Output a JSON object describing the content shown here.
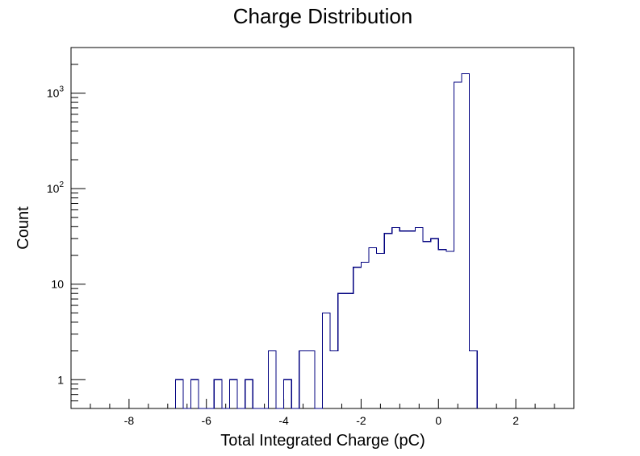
{
  "chart_data": {
    "type": "bar",
    "title": "Charge Distribution",
    "xlabel": "Total Integrated Charge (pC)",
    "ylabel": "Count",
    "xlim": [
      -9.5,
      3.5
    ],
    "ylim": [
      0.5,
      3000
    ],
    "yscale": "log",
    "grid": false,
    "legend": "none",
    "bin_width": 0.2,
    "series_color": "#00007f",
    "x_ticks": [
      "-8",
      "-6",
      "-4",
      "-2",
      "0",
      "2"
    ],
    "y_ticks": [
      {
        "value": 1,
        "base": "1",
        "sup": ""
      },
      {
        "value": 10,
        "base": "10",
        "sup": ""
      },
      {
        "value": 100,
        "base": "10",
        "sup": "2"
      },
      {
        "value": 1000,
        "base": "10",
        "sup": "3"
      }
    ],
    "bins": [
      {
        "x": -6.7,
        "count": 1
      },
      {
        "x": -6.5,
        "count": 0
      },
      {
        "x": -6.3,
        "count": 1
      },
      {
        "x": -6.1,
        "count": 0
      },
      {
        "x": -5.9,
        "count": 0
      },
      {
        "x": -5.7,
        "count": 1
      },
      {
        "x": -5.5,
        "count": 0
      },
      {
        "x": -5.3,
        "count": 1
      },
      {
        "x": -5.1,
        "count": 0
      },
      {
        "x": -4.9,
        "count": 1
      },
      {
        "x": -4.7,
        "count": 0
      },
      {
        "x": -4.5,
        "count": 0
      },
      {
        "x": -4.3,
        "count": 2
      },
      {
        "x": -4.1,
        "count": 0
      },
      {
        "x": -3.9,
        "count": 1
      },
      {
        "x": -3.7,
        "count": 0
      },
      {
        "x": -3.5,
        "count": 2
      },
      {
        "x": -3.3,
        "count": 2
      },
      {
        "x": -3.1,
        "count": 0
      },
      {
        "x": -2.9,
        "count": 5
      },
      {
        "x": -2.7,
        "count": 2
      },
      {
        "x": -2.5,
        "count": 8
      },
      {
        "x": -2.3,
        "count": 8
      },
      {
        "x": -2.1,
        "count": 15
      },
      {
        "x": -1.9,
        "count": 17
      },
      {
        "x": -1.7,
        "count": 24
      },
      {
        "x": -1.5,
        "count": 21
      },
      {
        "x": -1.3,
        "count": 34
      },
      {
        "x": -1.1,
        "count": 39
      },
      {
        "x": -0.9,
        "count": 36
      },
      {
        "x": -0.7,
        "count": 36
      },
      {
        "x": -0.5,
        "count": 39
      },
      {
        "x": -0.3,
        "count": 28
      },
      {
        "x": -0.1,
        "count": 30
      },
      {
        "x": 0.1,
        "count": 23
      },
      {
        "x": 0.3,
        "count": 22
      },
      {
        "x": 0.5,
        "count": 1300
      },
      {
        "x": 0.7,
        "count": 1600
      },
      {
        "x": 0.9,
        "count": 2
      }
    ]
  }
}
